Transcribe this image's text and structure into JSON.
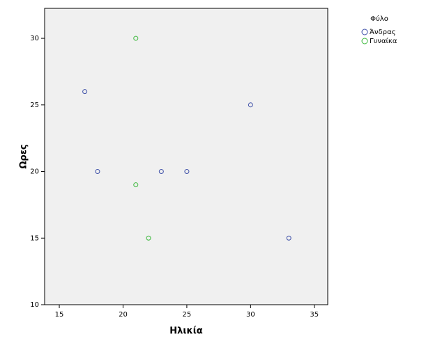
{
  "chart_data": {
    "type": "scatter",
    "x_label": "Ηλικία",
    "y_label": "Ωρες",
    "legend_title": "Φύλο",
    "legend_position": "right",
    "xlim": [
      13.85,
      36.05
    ],
    "xticks": [
      15,
      20,
      25,
      30,
      35
    ],
    "ylim": [
      10,
      32.25
    ],
    "yticks": [
      10,
      15,
      20,
      25,
      30
    ],
    "series": [
      {
        "name": "Άνδρας",
        "color": "#3f51a8",
        "x": [
          17,
          18,
          23,
          25,
          30,
          33
        ],
        "values": [
          26,
          20,
          20,
          20,
          25,
          15
        ]
      },
      {
        "name": "Γυναίκα",
        "color": "#3cb83c",
        "x": [
          21,
          21,
          22
        ],
        "values": [
          30,
          19,
          15
        ]
      }
    ]
  }
}
